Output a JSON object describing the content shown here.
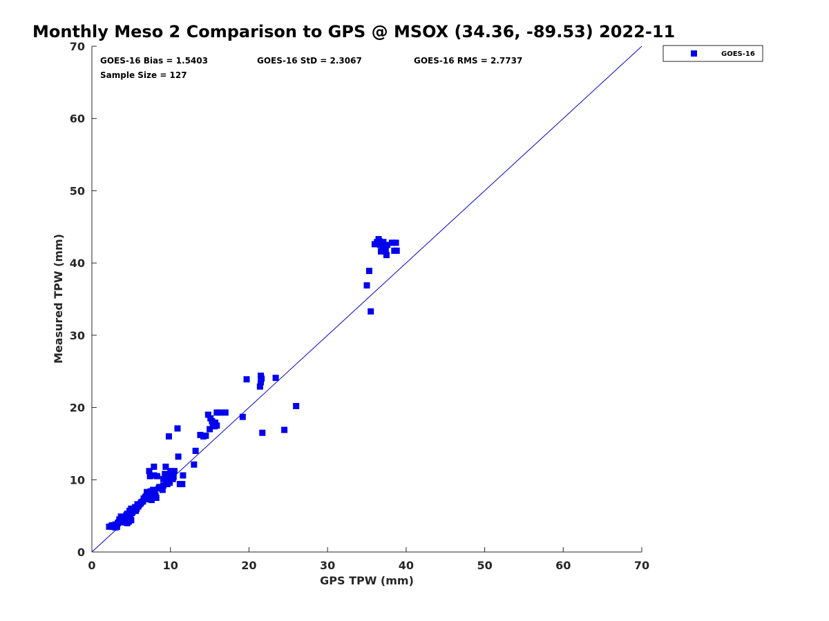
{
  "chart_data": {
    "type": "scatter",
    "title": "Monthly Meso 2 Comparison to GPS @ MSOX (34.36, -89.53) 2022-11",
    "xlabel": "GPS TPW (mm)",
    "ylabel": "Measured TPW (mm)",
    "xlim": [
      0,
      70
    ],
    "ylim": [
      0,
      70
    ],
    "xticks": [
      "0",
      "10",
      "20",
      "30",
      "40",
      "50",
      "60",
      "70"
    ],
    "yticks": [
      "0",
      "10",
      "20",
      "30",
      "40",
      "50",
      "60",
      "70"
    ],
    "grid": false,
    "legend_position": "top-right",
    "stats": {
      "bias": "GOES-16 Bias = 1.5403",
      "std": "GOES-16 StD = 2.3067",
      "rms": "GOES-16 RMS = 2.7737",
      "sample": "Sample Size = 127"
    },
    "reference_line": {
      "from": [
        0,
        0
      ],
      "to": [
        70,
        70
      ],
      "color": "#0000cc"
    },
    "series": [
      {
        "name": "GOES-16",
        "color": "#0000ee",
        "marker": "square",
        "points": [
          [
            2.2,
            3.5
          ],
          [
            2.5,
            3.6
          ],
          [
            2.8,
            3.5
          ],
          [
            3.0,
            3.4
          ],
          [
            3.0,
            3.8
          ],
          [
            3.2,
            3.5
          ],
          [
            3.4,
            4.1
          ],
          [
            3.5,
            4.5
          ],
          [
            3.7,
            4.9
          ],
          [
            3.8,
            4.3
          ],
          [
            4.0,
            4.8
          ],
          [
            4.1,
            4.1
          ],
          [
            4.2,
            4.4
          ],
          [
            4.3,
            4.9
          ],
          [
            4.5,
            4.0
          ],
          [
            4.5,
            5.3
          ],
          [
            4.6,
            4.6
          ],
          [
            4.7,
            4.2
          ],
          [
            4.8,
            5.7
          ],
          [
            4.9,
            5.0
          ],
          [
            5.0,
            4.4
          ],
          [
            5.0,
            6.0
          ],
          [
            5.1,
            5.4
          ],
          [
            5.3,
            5.9
          ],
          [
            5.5,
            6.2
          ],
          [
            5.6,
            5.7
          ],
          [
            5.8,
            6.6
          ],
          [
            5.9,
            6.3
          ],
          [
            6.0,
            6.5
          ],
          [
            6.2,
            6.7
          ],
          [
            6.5,
            7.0
          ],
          [
            6.6,
            7.4
          ],
          [
            6.8,
            7.6
          ],
          [
            7.0,
            8.0
          ],
          [
            7.0,
            8.3
          ],
          [
            7.1,
            7.3
          ],
          [
            7.2,
            7.8
          ],
          [
            7.3,
            8.2
          ],
          [
            7.3,
            11.2
          ],
          [
            7.4,
            10.5
          ],
          [
            7.5,
            8.0
          ],
          [
            7.6,
            7.2
          ],
          [
            7.7,
            7.5
          ],
          [
            7.8,
            8.6
          ],
          [
            7.9,
            10.6
          ],
          [
            7.9,
            11.8
          ],
          [
            8.0,
            8.2
          ],
          [
            8.1,
            7.8
          ],
          [
            8.2,
            7.5
          ],
          [
            8.3,
            10.5
          ],
          [
            8.5,
            8.8
          ],
          [
            9.0,
            8.6
          ],
          [
            9.1,
            9.2
          ],
          [
            9.1,
            10.1
          ],
          [
            9.3,
            10.8
          ],
          [
            9.4,
            11.8
          ],
          [
            9.6,
            9.4
          ],
          [
            9.7,
            10.4
          ],
          [
            9.8,
            16.0
          ],
          [
            9.9,
            9.6
          ],
          [
            10.0,
            11.2
          ],
          [
            10.1,
            10.9
          ],
          [
            10.3,
            10.1
          ],
          [
            10.4,
            10.4
          ],
          [
            10.5,
            11.2
          ],
          [
            10.9,
            17.1
          ],
          [
            11.0,
            13.2
          ],
          [
            11.2,
            9.4
          ],
          [
            11.5,
            9.4
          ],
          [
            11.6,
            10.6
          ],
          [
            13.0,
            12.1
          ],
          [
            13.2,
            14.0
          ],
          [
            13.8,
            16.2
          ],
          [
            14.2,
            16.0
          ],
          [
            14.8,
            19.0
          ],
          [
            15.0,
            17.0
          ],
          [
            15.1,
            18.5
          ],
          [
            15.3,
            18.1
          ],
          [
            15.4,
            17.7
          ],
          [
            15.6,
            17.4
          ],
          [
            15.7,
            17.9
          ],
          [
            15.9,
            17.5
          ],
          [
            15.9,
            19.3
          ],
          [
            16.3,
            19.3
          ],
          [
            17.0,
            19.3
          ],
          [
            19.2,
            18.7
          ],
          [
            19.7,
            23.9
          ],
          [
            21.4,
            22.9
          ],
          [
            21.5,
            23.5
          ],
          [
            21.5,
            24.4
          ],
          [
            21.6,
            24.0
          ],
          [
            21.7,
            16.5
          ],
          [
            23.4,
            24.1
          ],
          [
            24.5,
            16.9
          ],
          [
            26.0,
            20.2
          ],
          [
            35.0,
            36.9
          ],
          [
            35.3,
            38.9
          ],
          [
            35.5,
            33.3
          ],
          [
            36.0,
            42.6
          ],
          [
            36.3,
            42.9
          ],
          [
            36.5,
            43.3
          ],
          [
            36.6,
            43.0
          ],
          [
            36.7,
            42.5
          ],
          [
            36.8,
            41.6
          ],
          [
            37.0,
            42.3
          ],
          [
            37.1,
            42.9
          ],
          [
            37.2,
            42.0
          ],
          [
            37.4,
            41.7
          ],
          [
            37.5,
            41.1
          ],
          [
            37.6,
            42.5
          ],
          [
            38.2,
            42.8
          ],
          [
            38.5,
            41.7
          ],
          [
            38.7,
            42.8
          ],
          [
            38.8,
            41.7
          ],
          [
            2.6,
            3.7
          ],
          [
            3.3,
            4.0
          ],
          [
            3.9,
            4.6
          ],
          [
            4.4,
            5.1
          ],
          [
            5.2,
            5.6
          ],
          [
            5.7,
            6.0
          ],
          [
            6.3,
            6.9
          ],
          [
            6.9,
            7.7
          ],
          [
            7.5,
            8.4
          ],
          [
            8.6,
            9.0
          ],
          [
            9.5,
            9.8
          ],
          [
            10.2,
            10.7
          ],
          [
            14.5,
            16.1
          ]
        ]
      }
    ]
  }
}
